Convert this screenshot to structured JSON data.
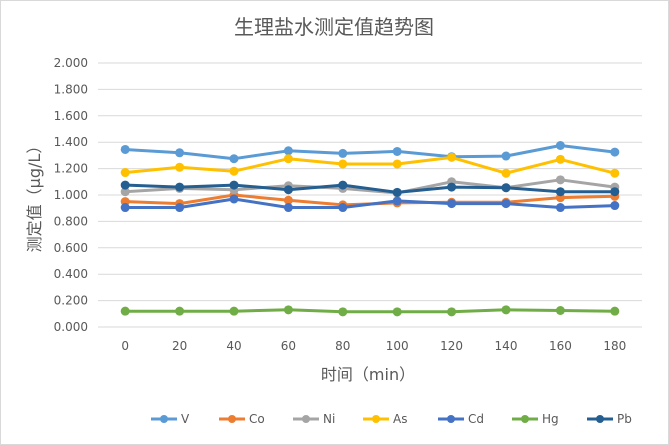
{
  "chart_data": {
    "type": "line",
    "title": "生理盐水测定值趋势图",
    "xlabel": "时间（min）",
    "ylabel": "测定值（μg/L）",
    "x": [
      0,
      20,
      40,
      60,
      80,
      100,
      120,
      140,
      160,
      180
    ],
    "x_tick_labels": [
      "0",
      "20",
      "40",
      "60",
      "80",
      "100",
      "120",
      "140",
      "160",
      "180"
    ],
    "ylim": [
      0,
      2
    ],
    "y_tick_labels": [
      "0.000",
      "0.200",
      "0.400",
      "0.600",
      "0.800",
      "1.000",
      "1.200",
      "1.400",
      "1.600",
      "1.800",
      "2.000"
    ],
    "grid": true,
    "legend_position": "bottom",
    "series": [
      {
        "name": "V",
        "color": "#5B9BD5",
        "values": [
          1.345,
          1.32,
          1.275,
          1.335,
          1.315,
          1.33,
          1.29,
          1.295,
          1.375,
          1.325
        ]
      },
      {
        "name": "Co",
        "color": "#ED7D31",
        "values": [
          0.95,
          0.935,
          1.0,
          0.96,
          0.925,
          0.94,
          0.945,
          0.945,
          0.98,
          0.99
        ]
      },
      {
        "name": "Ni",
        "color": "#A5A5A5",
        "values": [
          1.025,
          1.05,
          1.04,
          1.07,
          1.05,
          1.015,
          1.1,
          1.055,
          1.115,
          1.06
        ]
      },
      {
        "name": "As",
        "color": "#FFC000",
        "values": [
          1.17,
          1.21,
          1.18,
          1.275,
          1.235,
          1.235,
          1.285,
          1.165,
          1.27,
          1.165
        ]
      },
      {
        "name": "Cd",
        "color": "#4472C4",
        "values": [
          0.905,
          0.905,
          0.97,
          0.905,
          0.905,
          0.955,
          0.935,
          0.935,
          0.905,
          0.92
        ]
      },
      {
        "name": "Hg",
        "color": "#70AD47",
        "values": [
          0.12,
          0.12,
          0.12,
          0.13,
          0.115,
          0.115,
          0.115,
          0.13,
          0.125,
          0.12
        ]
      },
      {
        "name": "Pb",
        "color": "#255E91",
        "values": [
          1.075,
          1.06,
          1.075,
          1.04,
          1.075,
          1.02,
          1.06,
          1.055,
          1.025,
          1.025
        ]
      }
    ]
  }
}
